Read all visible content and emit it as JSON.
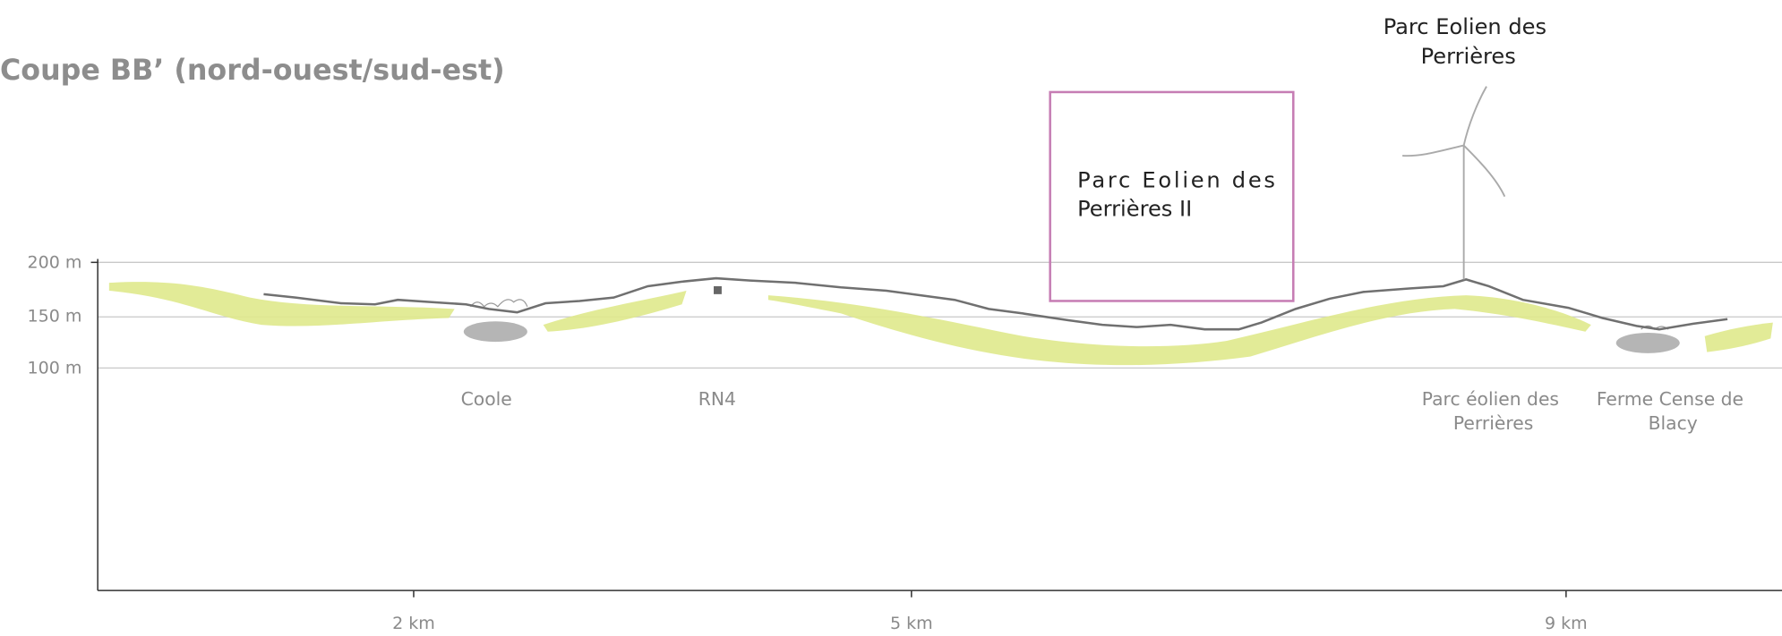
{
  "title": "Coupe BB’ (nord-ouest/sud-est)",
  "y_axis": {
    "labels": [
      "200 m",
      "150 m",
      "100 m"
    ]
  },
  "x_axis": {
    "labels": [
      "2 km",
      "5 km",
      "9 km"
    ]
  },
  "places": [
    {
      "lines": [
        "Coole"
      ]
    },
    {
      "lines": [
        "RN4"
      ]
    },
    {
      "lines": [
        "Parc éolien des",
        "Perrières"
      ]
    },
    {
      "lines": [
        "Ferme Cense de",
        "Blacy"
      ]
    }
  ],
  "annotations": {
    "boxed": {
      "lines": [
        "Parc Eolien des",
        "Perrières II"
      ]
    },
    "turbine": {
      "lines": [
        "Parc Eolien des",
        "Perrières"
      ]
    }
  }
}
